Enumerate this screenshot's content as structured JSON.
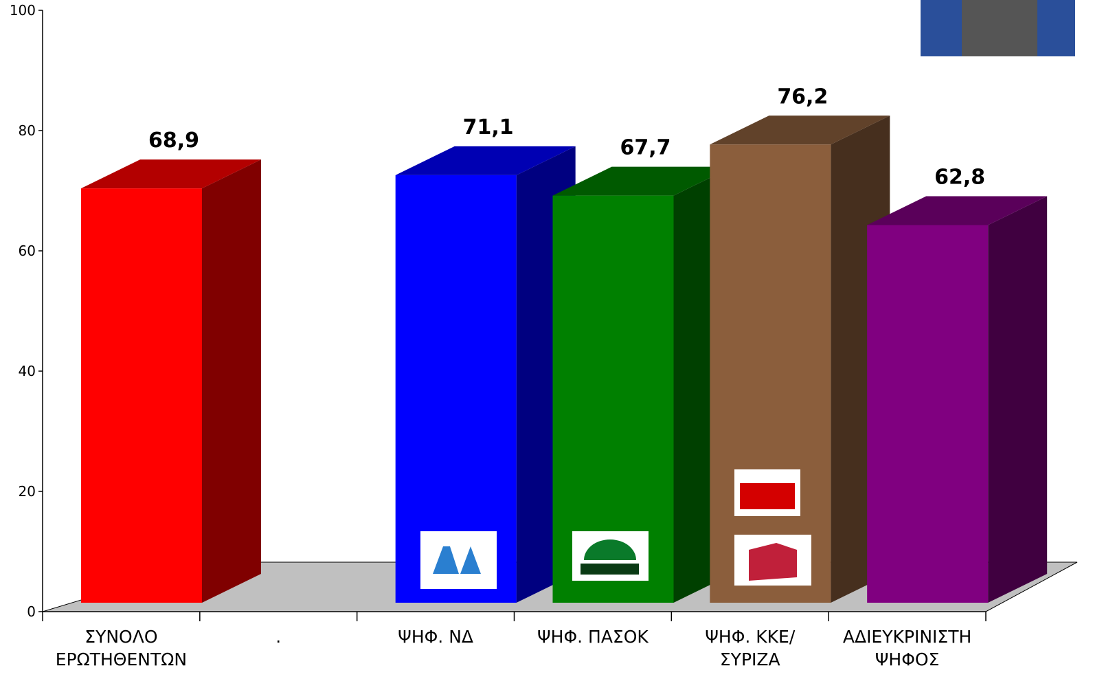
{
  "chart_data": {
    "type": "bar3d",
    "categories": [
      "ΣΥΝΟΛΟ ΕΡΩΤΗΘΕΝΤΩΝ",
      ".",
      "ΨΗΦ. ΝΔ",
      "ΨΗΦ. ΠΑΣΟΚ",
      "ΨΗΦ. ΚΚΕ/ ΣΥΡΙΖΑ",
      "ΑΔΙΕΥΚΡΙΝΙΣΤΗ ΨΗΦΟΣ"
    ],
    "values": [
      68.9,
      null,
      71.1,
      67.7,
      76.2,
      62.8
    ],
    "value_labels": [
      "68,9",
      null,
      "71,1",
      "67,7",
      "76,2",
      "62,8"
    ],
    "colors": [
      "#ff0000",
      null,
      "#0000ff",
      "#008000",
      "#8b5e3c",
      "#800080"
    ],
    "ylim": [
      0,
      100
    ],
    "yticks": [
      0,
      20,
      40,
      60,
      80,
      100
    ]
  }
}
